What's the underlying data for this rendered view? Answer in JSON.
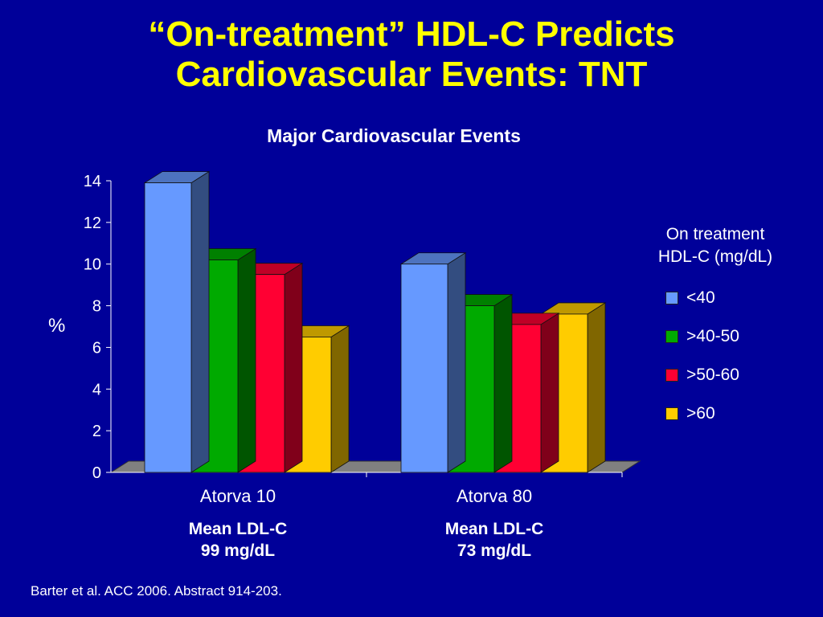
{
  "slide": {
    "title_line1": "“On-treatment” HDL-C Predicts",
    "title_line2": "Cardiovascular Events: TNT",
    "footer": "Barter et al. ACC 2006. Abstract 914-203."
  },
  "chart_data": {
    "type": "bar",
    "title": "Major Cardiovascular Events",
    "ylabel": "%",
    "xlabel": "",
    "ylim": [
      0,
      14
    ],
    "yticks": [
      0,
      2,
      4,
      6,
      8,
      10,
      12,
      14
    ],
    "categories": [
      "Atorva 10",
      "Atorva 80"
    ],
    "category_sublabels": [
      [
        "Mean LDL-C",
        "99 mg/dL"
      ],
      [
        "Mean LDL-C",
        "73 mg/dL"
      ]
    ],
    "legend_title": [
      "On treatment",
      "HDL-C (mg/dL)"
    ],
    "legend_position": "right",
    "series": [
      {
        "name": "<40",
        "color": "#6699ff",
        "values": [
          13.9,
          10.0
        ]
      },
      {
        "name": ">40-50",
        "color": "#00aa00",
        "values": [
          10.2,
          8.0
        ]
      },
      {
        "name": ">50-60",
        "color": "#ff0033",
        "values": [
          9.5,
          7.1
        ]
      },
      {
        "name": ">60",
        "color": "#ffcc00",
        "values": [
          6.5,
          7.6
        ]
      }
    ],
    "grid": false
  }
}
